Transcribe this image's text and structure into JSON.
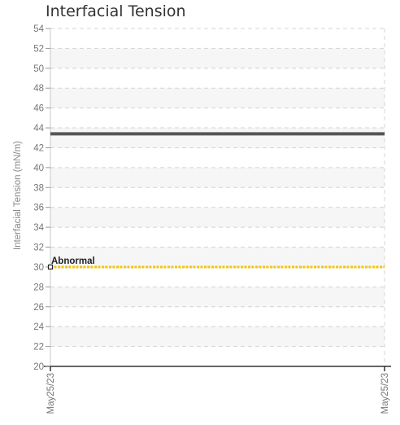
{
  "chart_data": {
    "type": "line",
    "title": "Interfacial Tension",
    "xlabel": "",
    "ylabel": "Interfacial Tension (mN/m)",
    "ylim": [
      20,
      54
    ],
    "yticks": [
      20,
      22,
      24,
      26,
      28,
      30,
      32,
      34,
      36,
      38,
      40,
      42,
      44,
      46,
      48,
      50,
      52,
      54
    ],
    "x": [
      "May25/23",
      "May25/23"
    ],
    "grid": true,
    "series": [
      {
        "values": [
          43.4,
          43.4
        ],
        "color": "#555555",
        "style": "solid"
      },
      {
        "values": [
          30,
          30
        ],
        "color": "#f2c70f",
        "style": "dotted"
      }
    ],
    "annotations": [
      {
        "text": "Abnormal",
        "x": "May25/23",
        "y": 30,
        "marker": "square"
      }
    ]
  }
}
